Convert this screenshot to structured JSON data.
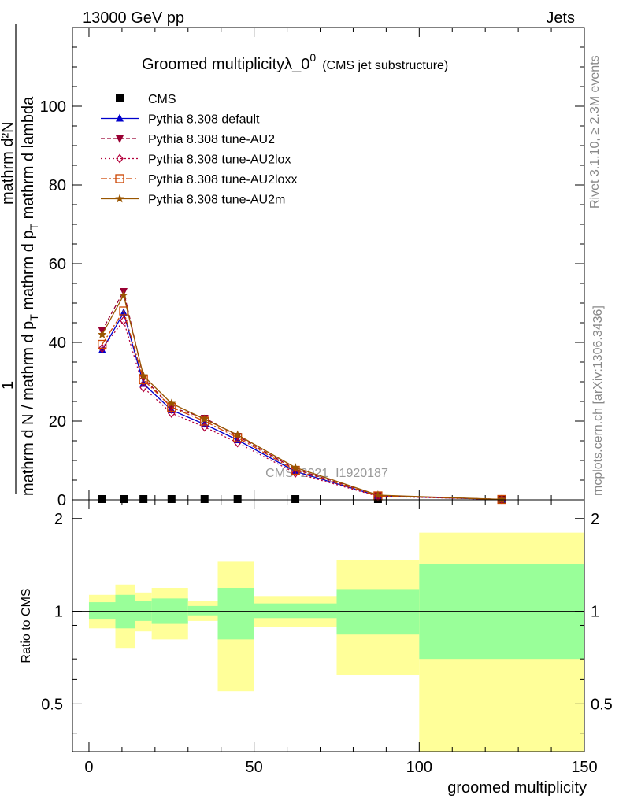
{
  "header": {
    "energy_label": "13000 GeV pp",
    "process_label": "Jets"
  },
  "side_text": {
    "rivet": "Rivet 3.1.10, ≥ 2.3M events",
    "mcplots": "mcplots.cern.ch [arXiv:1306.3436]"
  },
  "watermark": "CMS_2021_I1920187",
  "chart_data": [
    {
      "type": "line",
      "title": "Groomed multiplicityλ_0",
      "title_sup": "0",
      "subtitle": "(CMS jet substructure)",
      "ylabel_num": "mathrm d²N",
      "ylabel_one": "1",
      "ylabel_den": "mathrm d N / mathrm d p",
      "ylabel_den2": "T",
      "ylabel_den3": " mathrm d p",
      "ylabel_den4": "T",
      "ylabel_den5": " mathrm d lambda",
      "xlim": [
        -5,
        150
      ],
      "ylim": [
        0,
        120
      ],
      "yticks": [
        "0",
        "20",
        "40",
        "60",
        "80",
        "100"
      ],
      "yticks_vals": [
        0,
        20,
        40,
        60,
        80,
        100
      ],
      "x": [
        4,
        10.5,
        16.5,
        25,
        35,
        45,
        62.5,
        87.5,
        125
      ],
      "series": [
        {
          "name": "CMS",
          "color": "#000000",
          "marker": "square",
          "values": [
            0.2,
            0.2,
            0.2,
            0.2,
            0.2,
            0.2,
            0.2,
            0.2,
            0.2
          ]
        },
        {
          "name": "Pythia 8.308 default",
          "color": "#0000cc",
          "marker": "triangle-up",
          "dash": "",
          "values": [
            38,
            47.5,
            29.5,
            22.8,
            19.2,
            15.2,
            7.2,
            1.0,
            0.1
          ]
        },
        {
          "name": "Pythia 8.308 tune-AU2",
          "color": "#990033",
          "marker": "triangle-down",
          "dash": "5,3",
          "values": [
            43,
            53,
            31,
            23.5,
            20.8,
            16.2,
            7.8,
            1.1,
            0.1
          ]
        },
        {
          "name": "Pythia 8.308 tune-AU2lox",
          "color": "#b3003b",
          "marker": "diamond-open",
          "dash": "2,3",
          "values": [
            38.5,
            45.5,
            28.5,
            22.0,
            18.5,
            14.5,
            6.8,
            0.9,
            0.1
          ]
        },
        {
          "name": "Pythia 8.308 tune-AU2loxx",
          "color": "#cc4400",
          "marker": "square-open",
          "dash": "8,3,2,3",
          "values": [
            39.5,
            48,
            30.5,
            23.5,
            20.0,
            15.8,
            7.5,
            1.0,
            0.1
          ]
        },
        {
          "name": "Pythia 8.308 tune-AU2m",
          "color": "#995500",
          "marker": "star",
          "dash": "",
          "values": [
            42,
            52,
            31.5,
            24.5,
            20.5,
            16.5,
            8.2,
            1.2,
            0.1
          ]
        }
      ],
      "legend_position": "top-left"
    },
    {
      "type": "area",
      "ylabel": "Ratio to CMS",
      "xlabel": "groomed multiplicity",
      "xlim": [
        -5,
        150
      ],
      "ylim": [
        0.35,
        2.3
      ],
      "yticks": [
        "0.5",
        "1",
        "2"
      ],
      "yticks_vals": [
        0.5,
        1,
        2
      ],
      "xticks": [
        "0",
        "50",
        "100",
        "150"
      ],
      "xticks_vals": [
        0,
        50,
        100,
        150
      ],
      "band_colors": {
        "inner": "#99ff99",
        "outer": "#ffff99"
      },
      "bins": [
        {
          "x0": 0,
          "x1": 8,
          "outer": [
            0.88,
            1.13
          ],
          "inner": [
            0.94,
            1.07
          ]
        },
        {
          "x0": 8,
          "x1": 14,
          "outer": [
            0.76,
            1.22
          ],
          "inner": [
            0.88,
            1.13
          ]
        },
        {
          "x0": 14,
          "x1": 19,
          "outer": [
            0.86,
            1.15
          ],
          "inner": [
            0.93,
            1.08
          ]
        },
        {
          "x0": 19,
          "x1": 30,
          "outer": [
            0.81,
            1.19
          ],
          "inner": [
            0.91,
            1.1
          ]
        },
        {
          "x0": 30,
          "x1": 39,
          "outer": [
            0.93,
            1.08
          ],
          "inner": [
            0.97,
            1.04
          ]
        },
        {
          "x0": 39,
          "x1": 50,
          "outer": [
            0.55,
            1.45
          ],
          "inner": [
            0.81,
            1.19
          ]
        },
        {
          "x0": 50,
          "x1": 75,
          "outer": [
            0.89,
            1.12
          ],
          "inner": [
            0.95,
            1.06
          ]
        },
        {
          "x0": 75,
          "x1": 100,
          "outer": [
            0.62,
            1.47
          ],
          "inner": [
            0.84,
            1.18
          ]
        },
        {
          "x0": 100,
          "x1": 150,
          "outer": [
            0.35,
            1.8
          ],
          "inner": [
            0.7,
            1.42
          ]
        }
      ],
      "reference": 1
    }
  ]
}
